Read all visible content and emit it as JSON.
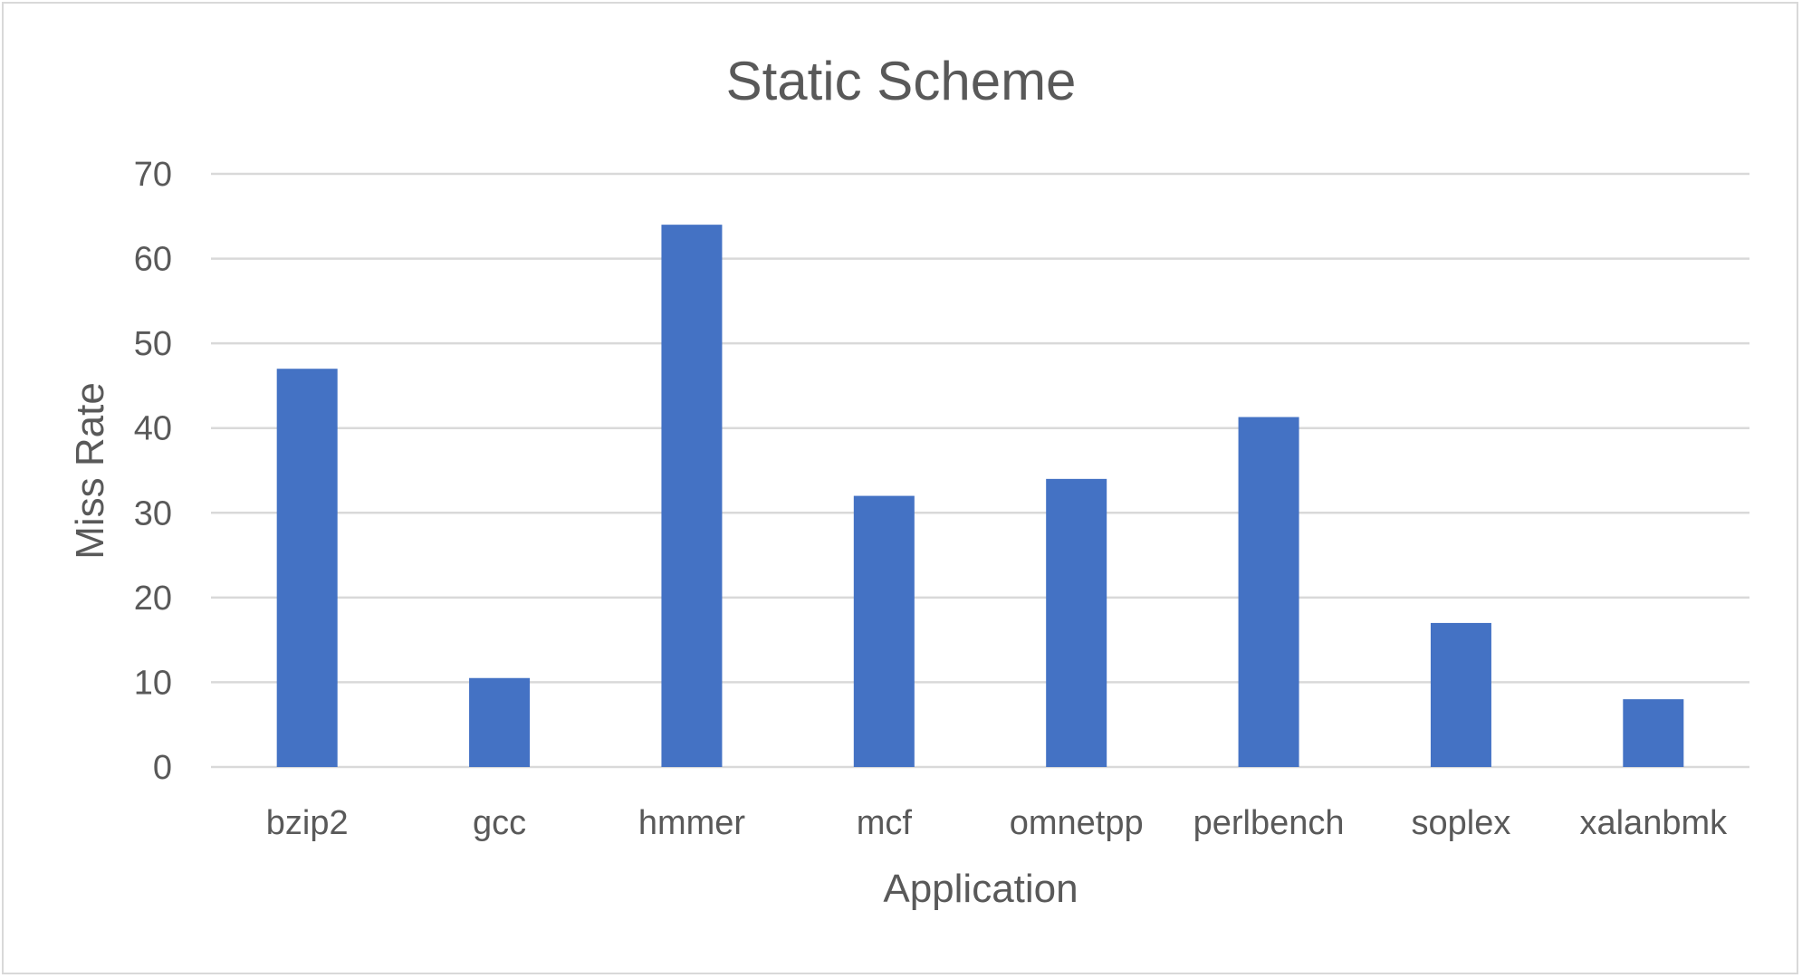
{
  "chart_data": {
    "type": "bar",
    "title": "Static Scheme",
    "xlabel": "Application",
    "ylabel": "Miss Rate",
    "categories": [
      "bzip2",
      "gcc",
      "hmmer",
      "mcf",
      "omnetpp",
      "perlbench",
      "soplex",
      "xalanbmk"
    ],
    "values": [
      47,
      10.5,
      64,
      32,
      34,
      41.3,
      17,
      8
    ],
    "ylim": [
      0,
      70
    ],
    "yticks": [
      "0",
      "10",
      "20",
      "30",
      "40",
      "50",
      "60",
      "70"
    ],
    "grid": true,
    "legend": "none",
    "bar_color": "#4472c4"
  }
}
